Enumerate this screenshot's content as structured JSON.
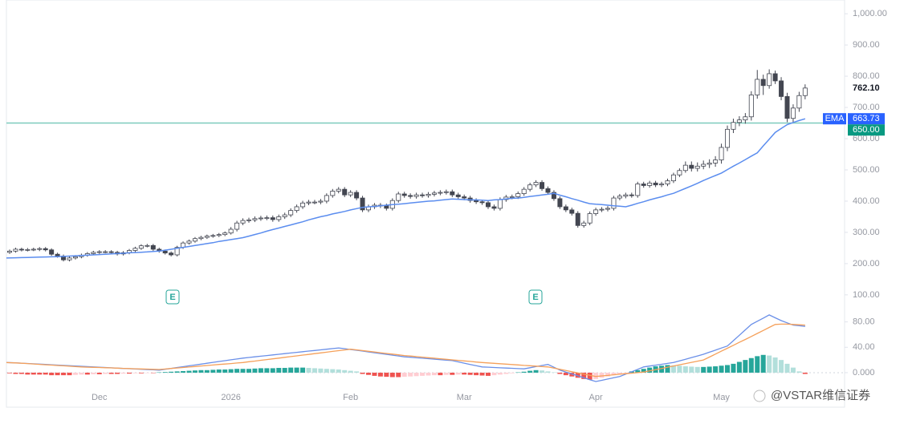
{
  "chart_data": [
    {
      "type": "candlestick",
      "categories": [
        null,
        null,
        null,
        null,
        null,
        null,
        null,
        null,
        null,
        null,
        null,
        null,
        null,
        null,
        null,
        "Dec",
        null,
        null,
        null,
        null,
        null,
        null,
        null,
        null,
        null,
        null,
        null,
        null,
        null,
        null,
        null,
        null,
        null,
        null,
        null,
        null,
        null,
        "2026",
        null,
        null,
        null,
        null,
        null,
        null,
        null,
        null,
        null,
        null,
        null,
        null,
        null,
        null,
        null,
        null,
        null,
        null,
        null,
        "Feb",
        null,
        null,
        null,
        null,
        null,
        null,
        null,
        null,
        null,
        null,
        null,
        null,
        null,
        null,
        null,
        null,
        null,
        null,
        "Mar",
        null,
        null,
        null,
        null,
        null,
        null,
        null,
        null,
        null,
        null,
        null,
        null,
        null,
        null,
        null,
        null,
        null,
        null,
        null,
        null,
        null,
        "Apr",
        null,
        null,
        null,
        null,
        null,
        null,
        null,
        null,
        null,
        null,
        null,
        null,
        null,
        null,
        null,
        null,
        null,
        null,
        null,
        null,
        "May",
        null,
        null,
        null,
        null,
        null,
        null,
        null,
        null,
        null,
        null,
        null,
        null,
        null,
        null
      ],
      "open": [
        236,
        240,
        246,
        244,
        245,
        246,
        248,
        244,
        230,
        224,
        212,
        218,
        222,
        227,
        232,
        236,
        238,
        238,
        236,
        231,
        235,
        242,
        249,
        257,
        258,
        246,
        240,
        234,
        228,
        252,
        266,
        272,
        280,
        284,
        288,
        290,
        293,
        298,
        310,
        330,
        338,
        340,
        344,
        346,
        347,
        341,
        350,
        356,
        370,
        382,
        394,
        397,
        397,
        400,
        418,
        432,
        438,
        420,
        428,
        410,
        372,
        382,
        387,
        385,
        377,
        402,
        423,
        418,
        415,
        420,
        418,
        422,
        426,
        428,
        430,
        420,
        414,
        410,
        402,
        398,
        395,
        382,
        377,
        405,
        413,
        414,
        424,
        438,
        452,
        460,
        440,
        428,
        408,
        382,
        372,
        361,
        322,
        330,
        360,
        372,
        374,
        377,
        410,
        416,
        420,
        418,
        455,
        450,
        458,
        452,
        455,
        465,
        484,
        498,
        515,
        505,
        512,
        518,
        522,
        532,
        572,
        630,
        652,
        660,
        670,
        740,
        790,
        770,
        808,
        785,
        735,
        665,
        698,
        738
      ],
      "high": [
        245,
        251,
        251,
        250,
        251,
        253,
        253,
        249,
        235,
        229,
        223,
        227,
        232,
        237,
        241,
        243,
        243,
        243,
        241,
        240,
        247,
        254,
        262,
        263,
        263,
        251,
        245,
        239,
        257,
        271,
        277,
        285,
        289,
        293,
        295,
        298,
        303,
        317,
        337,
        345,
        347,
        351,
        353,
        354,
        354,
        357,
        363,
        377,
        389,
        401,
        404,
        404,
        407,
        425,
        439,
        445,
        445,
        435,
        435,
        417,
        389,
        394,
        394,
        392,
        409,
        430,
        430,
        425,
        427,
        427,
        429,
        433,
        435,
        437,
        437,
        427,
        421,
        417,
        409,
        405,
        402,
        389,
        412,
        420,
        421,
        431,
        445,
        459,
        467,
        467,
        447,
        435,
        415,
        389,
        379,
        368,
        337,
        367,
        379,
        381,
        384,
        417,
        423,
        427,
        427,
        462,
        462,
        465,
        465,
        462,
        472,
        491,
        505,
        527,
        527,
        524,
        530,
        534,
        544,
        584,
        642,
        664,
        672,
        682,
        752,
        820,
        805,
        822,
        818,
        797,
        747,
        710,
        750,
        774
      ],
      "low": [
        231,
        235,
        239,
        239,
        240,
        240,
        239,
        225,
        219,
        207,
        207,
        213,
        217,
        222,
        227,
        231,
        233,
        231,
        226,
        226,
        230,
        237,
        244,
        252,
        241,
        235,
        229,
        223,
        223,
        247,
        261,
        267,
        275,
        279,
        283,
        285,
        288,
        293,
        303,
        323,
        331,
        333,
        337,
        339,
        334,
        334,
        343,
        349,
        363,
        375,
        387,
        390,
        390,
        393,
        411,
        425,
        413,
        413,
        403,
        365,
        365,
        375,
        378,
        370,
        370,
        395,
        411,
        408,
        408,
        411,
        411,
        415,
        419,
        421,
        413,
        407,
        403,
        395,
        391,
        388,
        375,
        370,
        370,
        398,
        406,
        407,
        417,
        431,
        445,
        433,
        421,
        401,
        375,
        365,
        354,
        315,
        315,
        323,
        353,
        365,
        367,
        370,
        403,
        409,
        411,
        411,
        443,
        443,
        445,
        445,
        448,
        458,
        477,
        491,
        495,
        495,
        502,
        506,
        510,
        520,
        560,
        618,
        640,
        648,
        658,
        728,
        740,
        760,
        775,
        723,
        653,
        653,
        686,
        726
      ],
      "close": [
        240,
        246,
        244,
        245,
        246,
        248,
        244,
        230,
        224,
        212,
        218,
        222,
        227,
        232,
        236,
        238,
        238,
        236,
        231,
        235,
        242,
        249,
        257,
        258,
        246,
        240,
        234,
        228,
        252,
        266,
        272,
        280,
        284,
        288,
        290,
        293,
        298,
        310,
        330,
        338,
        340,
        344,
        346,
        347,
        341,
        350,
        356,
        370,
        382,
        394,
        397,
        397,
        400,
        418,
        432,
        438,
        420,
        428,
        410,
        372,
        382,
        387,
        385,
        377,
        402,
        423,
        418,
        415,
        420,
        418,
        422,
        426,
        428,
        430,
        420,
        414,
        410,
        402,
        398,
        395,
        382,
        377,
        405,
        413,
        414,
        424,
        438,
        452,
        460,
        440,
        428,
        408,
        382,
        372,
        361,
        322,
        330,
        360,
        372,
        374,
        377,
        410,
        416,
        420,
        418,
        455,
        450,
        458,
        452,
        455,
        465,
        484,
        498,
        515,
        505,
        512,
        518,
        522,
        532,
        572,
        630,
        652,
        660,
        670,
        740,
        790,
        770,
        808,
        785,
        735,
        665,
        698,
        738,
        762.1
      ],
      "up_color": "#ffffff",
      "down_color": "#434651",
      "wick_color": "#434651",
      "ylim": [
        56,
        1044
      ],
      "yticks": [
        {
          "value": 100,
          "label": "100.00"
        },
        {
          "value": 200,
          "label": "200.00"
        },
        {
          "value": 300,
          "label": "300.00"
        },
        {
          "value": 400,
          "label": "400.00"
        },
        {
          "value": 500,
          "label": "500.00"
        },
        {
          "value": 600,
          "label": "600.00"
        },
        {
          "value": 700,
          "label": "700.00"
        },
        {
          "value": 800,
          "label": "800.00"
        },
        {
          "value": 900,
          "label": "900.00"
        },
        {
          "value": 1000,
          "label": "1,000.00"
        }
      ],
      "grid": false,
      "ema": {
        "name": "EMA",
        "color": "#5b8def",
        "values": [
          218,
          218.6,
          219.1,
          219.7,
          220.2,
          220.8,
          221.3,
          221.9,
          222.4,
          223,
          224,
          225,
          226,
          227,
          228,
          229,
          230,
          231,
          232,
          233,
          234.5,
          235.5,
          236.5,
          237.5,
          239,
          240,
          243,
          246,
          249,
          252,
          255,
          258,
          261,
          264,
          267,
          271,
          274,
          277,
          280,
          283,
          288,
          293,
          298,
          304,
          309,
          314,
          319,
          324,
          329,
          334,
          340,
          345,
          350,
          354,
          359,
          363,
          367,
          372,
          376,
          380,
          382,
          383,
          385,
          387,
          389,
          390,
          392,
          394,
          396,
          398,
          400,
          401,
          403,
          405,
          407,
          406,
          405,
          404,
          404,
          403,
          402,
          404,
          405,
          407,
          409,
          410,
          412,
          415,
          417,
          420,
          422,
          425,
          419,
          414,
          408,
          403,
          397,
          392,
          390,
          389,
          387,
          385,
          384,
          382,
          387,
          393,
          398,
          404,
          409,
          414,
          420,
          425,
          433,
          441,
          449,
          457,
          466,
          474,
          482,
          490,
          501,
          512,
          522,
          533,
          544,
          555,
          577,
          598,
          620,
          633,
          645,
          652,
          658,
          663.73
        ]
      },
      "hline": {
        "value": 650,
        "label": "650.00",
        "color": "#7ecbbd"
      },
      "last_price": {
        "value": 762.1,
        "label": "762.10"
      },
      "earnings_label": "E"
    },
    {
      "type": "macd",
      "ylim": [
        -19,
        101
      ],
      "yticks": [
        {
          "value": 0,
          "label": "0.000"
        },
        {
          "value": 40,
          "label": "40.00"
        },
        {
          "value": 80,
          "label": "80.00"
        }
      ],
      "series": [
        {
          "color": "#6a8fe8",
          "values": [
            16,
            15.5,
            15,
            14.5,
            14,
            13.5,
            13,
            12.5,
            12,
            11.5,
            11,
            10.5,
            10,
            9.5,
            9,
            8.5,
            8.1,
            7.6,
            7.2,
            6.7,
            6.3,
            5.8,
            5.4,
            4.9,
            4.5,
            4,
            5.4,
            6.7,
            8.1,
            9.4,
            10.8,
            12.1,
            13.5,
            14.9,
            16.2,
            17.6,
            18.9,
            20.3,
            21.6,
            23,
            24,
            25,
            26,
            27,
            28,
            29,
            30,
            31,
            32,
            33,
            34,
            35,
            36,
            37,
            38,
            39,
            37.8,
            36.5,
            35.3,
            34,
            32.7,
            31.4,
            30.1,
            28.9,
            27.6,
            26.3,
            25,
            24.3,
            23.5,
            22.8,
            22,
            21.3,
            20.5,
            19.8,
            19,
            17,
            15,
            13,
            11,
            9,
            8.6,
            8.1,
            7.7,
            7.3,
            6.9,
            6.4,
            6,
            7.8,
            9.5,
            11.3,
            13,
            8.5,
            4,
            1,
            -2,
            -5,
            -8,
            -11,
            -14,
            -12,
            -10,
            -8,
            -6,
            -2.3,
            1.5,
            5.3,
            9,
            10.4,
            11.8,
            13.2,
            14.6,
            16,
            18.6,
            21.2,
            23.8,
            26.4,
            29,
            32.3,
            35.5,
            38.8,
            42,
            50.5,
            59,
            67.5,
            76,
            81,
            86,
            91,
            86.5,
            82,
            78.5,
            75,
            74,
            73
          ]
        },
        {
          "color": "#f5a05a",
          "values": [
            16,
            15.4,
            14.8,
            14.3,
            13.7,
            13.1,
            12.5,
            11.9,
            11.3,
            10.8,
            10.2,
            9.6,
            9,
            8.7,
            8.4,
            8.1,
            7.8,
            7.5,
            7.2,
            6.8,
            6.5,
            6.2,
            5.9,
            5.6,
            5.3,
            5,
            5.8,
            6.6,
            7.4,
            8.1,
            8.9,
            9.7,
            10.5,
            11.3,
            12.1,
            12.9,
            13.6,
            14.4,
            15.2,
            16,
            17.2,
            18.3,
            19.5,
            20.7,
            21.8,
            23,
            24.2,
            25.3,
            26.5,
            27.7,
            28.8,
            30,
            31.2,
            32.3,
            33.5,
            34.7,
            35.8,
            37,
            35.9,
            34.8,
            33.7,
            32.6,
            31.4,
            30.3,
            29.2,
            28.1,
            27,
            26.2,
            25.3,
            24.5,
            23.6,
            22.8,
            21.9,
            21.1,
            20.2,
            19.4,
            18.5,
            17.7,
            16.8,
            16,
            15.4,
            14.7,
            14.1,
            13.5,
            12.8,
            12.2,
            11.5,
            10.9,
            10.3,
            9.6,
            9,
            7.1,
            5.3,
            3.4,
            1.5,
            -0.4,
            -2.3,
            -4.1,
            -6,
            -5.1,
            -4.3,
            -3.4,
            -2.5,
            -1.6,
            -0.8,
            0.1,
            1,
            2.9,
            4.8,
            6.7,
            8.6,
            10.5,
            12.4,
            14.3,
            16.2,
            18.1,
            20,
            24.6,
            29.3,
            33.9,
            38.5,
            43.1,
            47.8,
            52.4,
            57,
            61.8,
            66.5,
            71.3,
            76,
            76.5,
            76.5,
            76,
            75.5,
            75
          ]
        }
      ],
      "histogram": {
        "values": [
          -1,
          -2,
          -2,
          -3,
          -3,
          -3,
          -3,
          -4,
          -4,
          -4,
          -4,
          -3.5,
          -3,
          -3,
          -2.5,
          -2.5,
          -2,
          -2,
          -2,
          -1.5,
          -1.5,
          -1,
          -1,
          -0.5,
          -0.5,
          0.5,
          1,
          1.5,
          2,
          2.5,
          3,
          3.5,
          4,
          4,
          4.5,
          5,
          5,
          5.5,
          6,
          6,
          6,
          6.5,
          7,
          7,
          7,
          7.5,
          7.5,
          8,
          8,
          8,
          7.5,
          7,
          6.5,
          6,
          5.5,
          5,
          4,
          3,
          2,
          -2,
          -3.5,
          -5,
          -6,
          -6.5,
          -7,
          -7,
          -6.5,
          -6,
          -5.5,
          -5,
          -4.5,
          -4,
          -4,
          -3.5,
          -3.5,
          -3,
          -3,
          -3.5,
          -4,
          -4.5,
          -5,
          -4,
          -3,
          -2,
          -1,
          0.5,
          1.5,
          3,
          4,
          3.5,
          2,
          0.5,
          -2,
          -4,
          -6,
          -8,
          -10,
          -11,
          -10,
          -8,
          -6,
          -4,
          -2,
          -0.5,
          2,
          4,
          6,
          8,
          10,
          11,
          12,
          11.5,
          11,
          10,
          9.5,
          9,
          9,
          9.5,
          10,
          11,
          12,
          14,
          17,
          20,
          23,
          26,
          28,
          27,
          24,
          20,
          14,
          8,
          2,
          -2
        ],
        "colors": {
          "positive_rising": "#26a69a",
          "positive_falling": "#b2dfdb",
          "negative_falling": "#ef5350",
          "negative_rising": "#ffcdd2"
        }
      }
    },
    {
      "type": "watermark",
      "text": "@VSTAR维信证券"
    }
  ]
}
